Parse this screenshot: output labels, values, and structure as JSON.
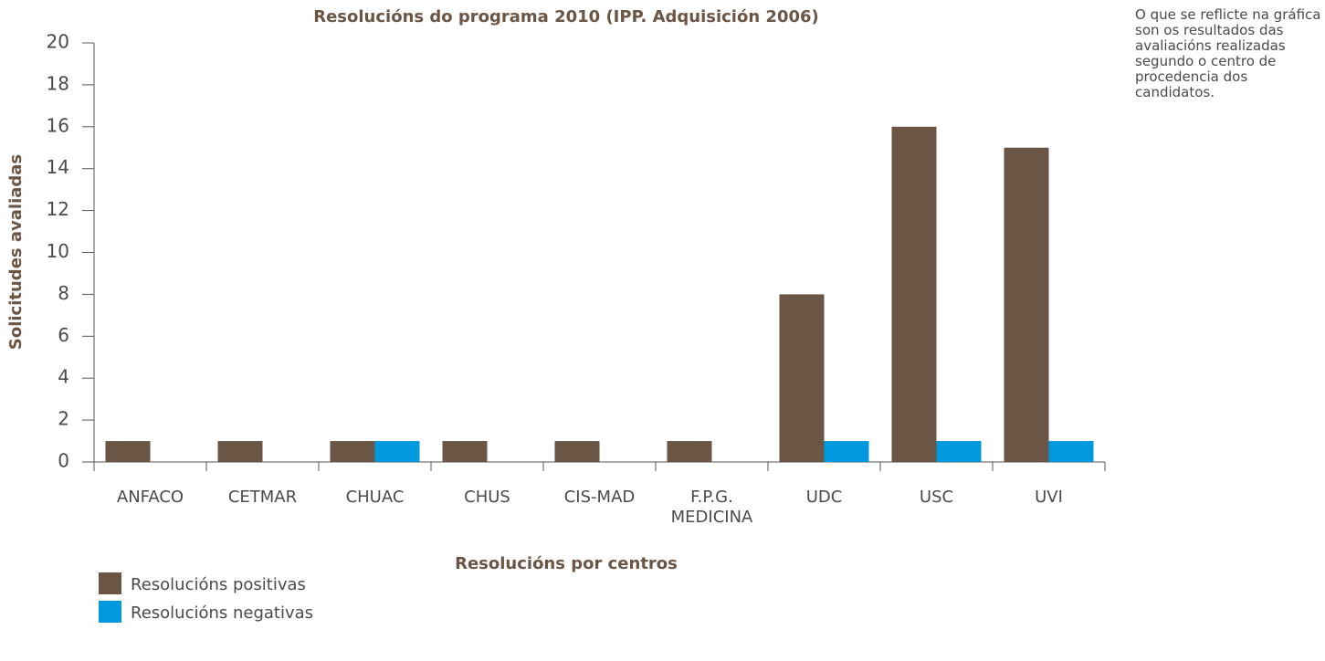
{
  "chart_data": {
    "type": "bar",
    "title": "Resolucións do programa 2010 (IPP. Adquisición 2006)",
    "x_label": "Resolucións por centros",
    "y_label": "Solicitudes avaliadas",
    "annotation": "O que se reflicte na gráfica son os resultados das avaliacións realizadas segundo o centro de procedencia dos candidatos.",
    "categories": [
      "ANFACO",
      "CETMAR",
      "CHUAC",
      "CHUS",
      "CIS-MAD",
      "F.P.G. MEDICINA",
      "UDC",
      "USC",
      "UVI"
    ],
    "series": [
      {
        "name": "Resolucións positivas",
        "color": "#6b5646",
        "values": [
          1,
          1,
          1,
          1,
          1,
          1,
          8,
          16,
          15
        ]
      },
      {
        "name": "Resolucións negativas",
        "color": "#0099dd",
        "values": [
          0,
          0,
          1,
          0,
          0,
          0,
          1,
          1,
          1
        ]
      }
    ],
    "ylim": [
      0,
      20
    ],
    "yticks": [
      0,
      2,
      4,
      6,
      8,
      10,
      12,
      14,
      16,
      18,
      20
    ],
    "grid": false
  }
}
